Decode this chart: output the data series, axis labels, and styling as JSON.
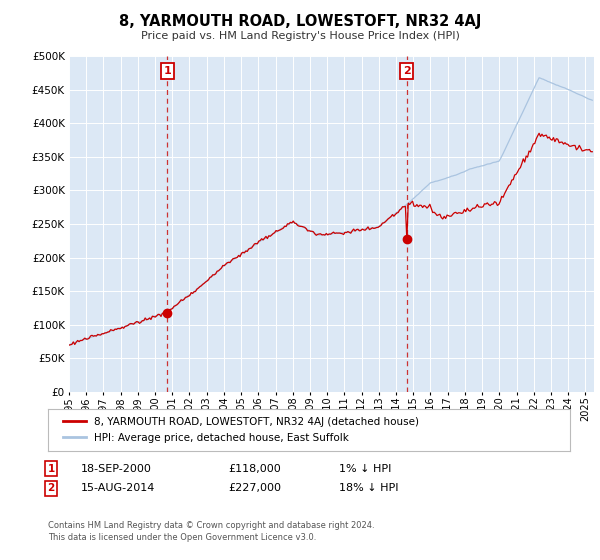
{
  "title": "8, YARMOUTH ROAD, LOWESTOFT, NR32 4AJ",
  "subtitle": "Price paid vs. HM Land Registry's House Price Index (HPI)",
  "ylim": [
    0,
    500000
  ],
  "yticks": [
    0,
    50000,
    100000,
    150000,
    200000,
    250000,
    300000,
    350000,
    400000,
    450000,
    500000
  ],
  "xlim_start": 1995.0,
  "xlim_end": 2025.5,
  "hpi_color": "#aac4e0",
  "price_color": "#cc0000",
  "marker_color": "#cc0000",
  "vline_color": "#cc3333",
  "annotation_box_color": "#cc0000",
  "plot_bg_color": "#dce8f5",
  "sale1_date": 2000.72,
  "sale1_price": 118000,
  "sale1_label": "1",
  "sale2_date": 2014.62,
  "sale2_price": 227000,
  "sale2_label": "2",
  "legend_label_red": "8, YARMOUTH ROAD, LOWESTOFT, NR32 4AJ (detached house)",
  "legend_label_blue": "HPI: Average price, detached house, East Suffolk",
  "footnote1": "Contains HM Land Registry data © Crown copyright and database right 2024.",
  "footnote2": "This data is licensed under the Open Government Licence v3.0.",
  "table_row1": [
    "1",
    "18-SEP-2000",
    "£118,000",
    "1% ↓ HPI"
  ],
  "table_row2": [
    "2",
    "15-AUG-2014",
    "£227,000",
    "18% ↓ HPI"
  ]
}
